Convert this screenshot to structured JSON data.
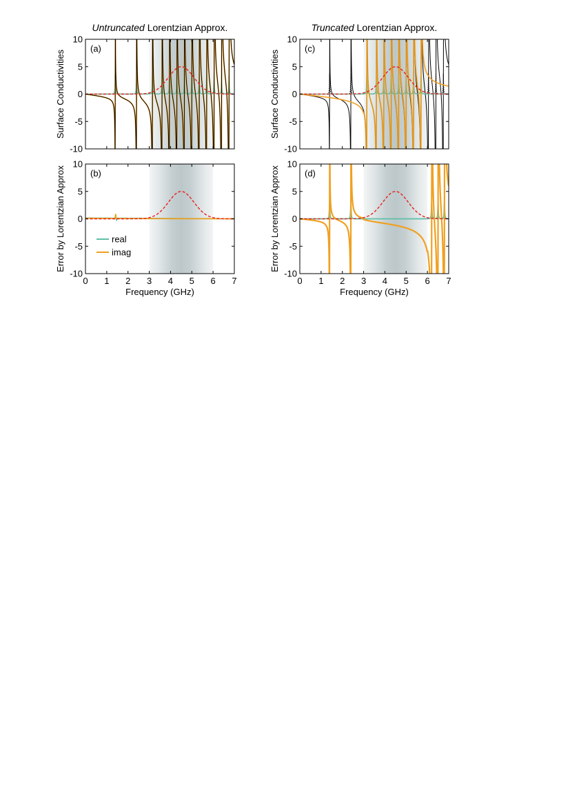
{
  "titles": [
    {
      "italic": "Untruncated",
      "rest": " Lorentzian Approx."
    },
    {
      "italic": "Truncated",
      "rest": " Lorentzian Approx."
    }
  ],
  "colors": {
    "real": "#5fbfa8",
    "imag": "#f0a020",
    "exact": "#000000",
    "pulse": "#e8201c",
    "band": "#b9c4c6"
  },
  "chart_data": [
    {
      "panel": "(a)",
      "type": "line",
      "xlim": [
        0,
        7
      ],
      "ylim": [
        -10,
        10
      ],
      "xticks": [
        0,
        1,
        2,
        3,
        4,
        5,
        6,
        7
      ],
      "yticks": [
        -10,
        -5,
        0,
        5,
        10
      ],
      "ylabel": "Surface Conductivities",
      "xlabel": "",
      "band": [
        3,
        6
      ],
      "band_core": [
        3.5,
        5.5
      ],
      "pulse": {
        "center": 4.5,
        "peak": 5,
        "sigma": 0.6
      },
      "resonances": [
        1.4,
        2.4,
        3.15,
        3.6,
        3.95,
        4.3,
        4.65,
        5.0,
        5.35,
        5.7,
        6.05,
        6.4,
        6.75
      ],
      "truncated": false
    },
    {
      "panel": "(b)",
      "type": "line",
      "xlim": [
        0,
        7
      ],
      "ylim": [
        -10,
        10
      ],
      "xticks": [
        0,
        1,
        2,
        3,
        4,
        5,
        6,
        7
      ],
      "yticks": [
        -10,
        -5,
        0,
        5,
        10
      ],
      "ylabel": "Error by Lorentzian Approx",
      "xlabel": "Frequency (GHz)",
      "band": [
        3,
        6
      ],
      "band_core": [
        3.5,
        5.5
      ],
      "pulse": {
        "center": 4.5,
        "peak": 5,
        "sigma": 0.6
      },
      "legend": [
        "real",
        "imag"
      ],
      "legend_loc": "lower-left",
      "truncated": false
    },
    {
      "panel": "(c)",
      "type": "line",
      "xlim": [
        0,
        7
      ],
      "ylim": [
        -10,
        10
      ],
      "xticks": [
        0,
        1,
        2,
        3,
        4,
        5,
        6,
        7
      ],
      "yticks": [
        -10,
        -5,
        0,
        5,
        10
      ],
      "ylabel": "Surface Conductivities",
      "xlabel": "",
      "band": [
        3,
        6
      ],
      "band_core": [
        3.5,
        5.5
      ],
      "pulse": {
        "center": 4.5,
        "peak": 5,
        "sigma": 0.6
      },
      "resonances": [
        1.4,
        2.4,
        3.15,
        3.6,
        3.95,
        4.3,
        4.65,
        5.0,
        5.35,
        5.7,
        6.05,
        6.4,
        6.75
      ],
      "kept_range": [
        3,
        6
      ],
      "truncated": true
    },
    {
      "panel": "(d)",
      "type": "line",
      "xlim": [
        0,
        7
      ],
      "ylim": [
        -10,
        10
      ],
      "xticks": [
        0,
        1,
        2,
        3,
        4,
        5,
        6,
        7
      ],
      "yticks": [
        -10,
        -5,
        0,
        5,
        10
      ],
      "ylabel": "Error by Lorentzian Approx",
      "xlabel": "Frequency (GHz)",
      "band": [
        3,
        6
      ],
      "band_core": [
        3.5,
        5.5
      ],
      "pulse": {
        "center": 4.5,
        "peak": 5,
        "sigma": 0.6
      },
      "error_resonances": [
        1.4,
        2.4,
        6.2,
        6.5,
        6.8
      ],
      "truncated": true
    }
  ]
}
